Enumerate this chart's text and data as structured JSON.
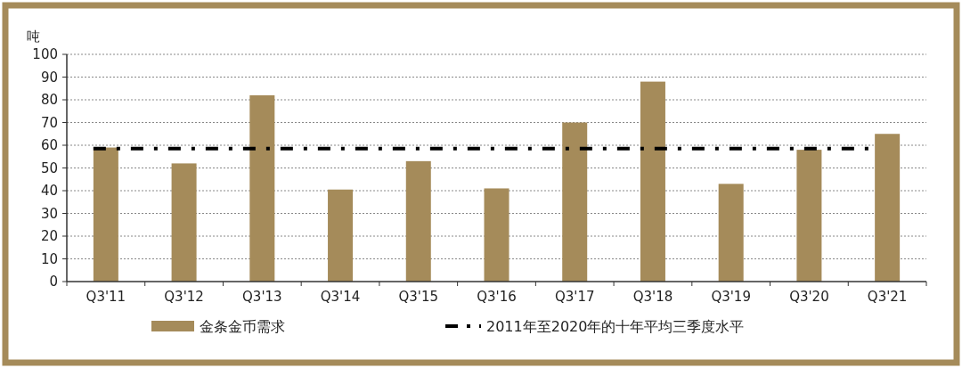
{
  "chart_data": {
    "type": "bar",
    "ylabel": "吨",
    "categories": [
      "Q3'11",
      "Q3'12",
      "Q3'13",
      "Q3'14",
      "Q3'15",
      "Q3'16",
      "Q3'17",
      "Q3'18",
      "Q3'19",
      "Q3'20",
      "Q3'21"
    ],
    "series": [
      {
        "name": "金条金币需求",
        "color": "#a58b5a",
        "values": [
          59,
          52,
          82,
          40.5,
          53,
          41,
          70,
          88,
          43,
          58,
          65
        ]
      }
    ],
    "ylim": [
      0,
      100
    ],
    "yticks": [
      0,
      10,
      20,
      30,
      40,
      50,
      60,
      70,
      80,
      90,
      100
    ],
    "grid": "y",
    "legend": "bottom",
    "ref_lines": [
      {
        "axis": "y",
        "value": 58.5,
        "label": "2011年至2020年的十年平均三季度水平",
        "color": "#000000",
        "line_style": "dashed"
      }
    ]
  }
}
